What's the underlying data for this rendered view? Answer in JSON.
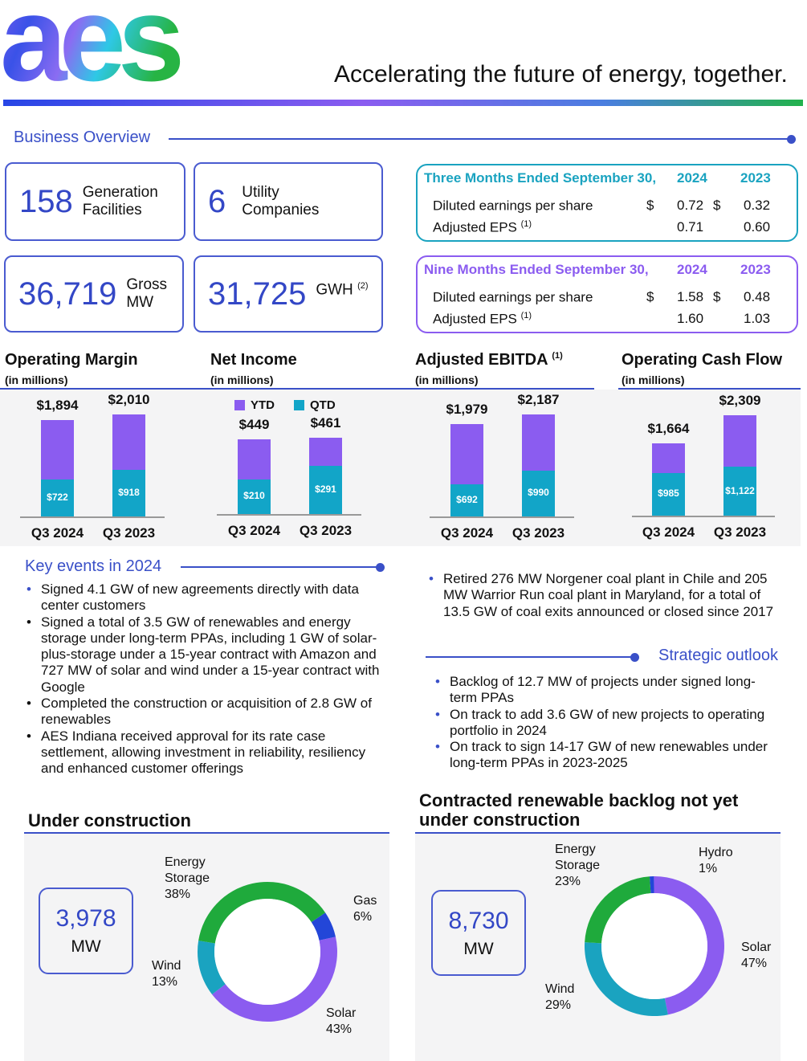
{
  "header": {
    "logo_text": "aes",
    "tagline": "Accelerating the future of energy, together."
  },
  "colors": {
    "accent": "#3a50c8",
    "ytd": "#8b5cf0",
    "qtd": "#12a5c8",
    "teal": "#1aa3c0",
    "purple": "#8b5cf0",
    "green": "#1faa3c",
    "gas_blue": "#2346d8"
  },
  "business_overview": {
    "title": "Business Overview",
    "kpis": [
      {
        "value": "158",
        "label_1": "Generation",
        "label_2": "Facilities"
      },
      {
        "value": "6",
        "label_1": "Utility",
        "label_2": "Companies"
      },
      {
        "value": "36,719",
        "label_1": "Gross",
        "label_2": "MW"
      },
      {
        "value": "31,725",
        "label_1": "GWH",
        "sup": "(2)"
      }
    ],
    "tables": [
      {
        "title": "Three Months Ended September 30,",
        "y1": "2024",
        "y2": "2023",
        "rows": [
          {
            "label": "Diluted earnings per share",
            "sup": "",
            "cur1": "$",
            "v1": "0.72",
            "cur2": "$",
            "v2": "0.32"
          },
          {
            "label": "Adjusted EPS",
            "sup": "(1)",
            "cur1": "",
            "v1": "0.71",
            "cur2": "",
            "v2": "0.60"
          }
        ]
      },
      {
        "title": "Nine Months Ended September 30,",
        "y1": "2024",
        "y2": "2023",
        "rows": [
          {
            "label": "Diluted earnings per share",
            "sup": "",
            "cur1": "$",
            "v1": "1.58",
            "cur2": "$",
            "v2": "0.48"
          },
          {
            "label": "Adjusted EPS",
            "sup": "(1)",
            "cur1": "",
            "v1": "1.60",
            "cur2": "",
            "v2": "1.03"
          }
        ]
      }
    ]
  },
  "chart_data": [
    {
      "type": "bar",
      "stacked": true,
      "title": "Operating Margin",
      "subtitle": "(in millions)",
      "categories": [
        "Q3 2024",
        "Q3 2023"
      ],
      "series": [
        {
          "name": "YTD",
          "values": [
            1894,
            2010
          ],
          "labels": [
            "$1,894",
            "$2,010"
          ]
        },
        {
          "name": "QTD",
          "values": [
            722,
            918
          ],
          "labels": [
            "$722",
            "$918"
          ]
        }
      ]
    },
    {
      "type": "bar",
      "stacked": true,
      "title": "Net Income",
      "subtitle": "(in millions)",
      "legend": [
        "YTD",
        "QTD"
      ],
      "categories": [
        "Q3 2024",
        "Q3 2023"
      ],
      "series": [
        {
          "name": "YTD",
          "values": [
            449,
            461
          ],
          "labels": [
            "$449",
            "$461"
          ]
        },
        {
          "name": "QTD",
          "values": [
            210,
            291
          ],
          "labels": [
            "$210",
            "$291"
          ]
        }
      ]
    },
    {
      "type": "bar",
      "stacked": true,
      "title": "Adjusted EBITDA",
      "title_sup": "(1)",
      "subtitle": "(in millions)",
      "categories": [
        "Q3 2024",
        "Q3 2023"
      ],
      "series": [
        {
          "name": "YTD",
          "values": [
            1979,
            2187
          ],
          "labels": [
            "$1,979",
            "$2,187"
          ]
        },
        {
          "name": "QTD",
          "values": [
            692,
            990
          ],
          "labels": [
            "$692",
            "$990"
          ]
        }
      ]
    },
    {
      "type": "bar",
      "stacked": true,
      "title": "Operating Cash Flow",
      "subtitle": "(in millions)",
      "categories": [
        "Q3 2024",
        "Q3 2023"
      ],
      "series": [
        {
          "name": "YTD",
          "values": [
            1664,
            2309
          ],
          "labels": [
            "$1,664",
            "$2,309"
          ]
        },
        {
          "name": "QTD",
          "values": [
            985,
            1122
          ],
          "labels": [
            "$985",
            "$1,122"
          ]
        }
      ]
    },
    {
      "type": "pie",
      "donut": true,
      "title": "Under construction",
      "total": "3,978",
      "unit": "MW",
      "slices": [
        {
          "name_1": "Gas",
          "name_2": "",
          "pct": 6,
          "label": "6%"
        },
        {
          "name_1": "Solar",
          "name_2": "",
          "pct": 43,
          "label": "43%"
        },
        {
          "name_1": "Wind",
          "name_2": "",
          "pct": 13,
          "label": "13%"
        },
        {
          "name_1": "Energy",
          "name_2": "Storage",
          "pct": 38,
          "label": "38%"
        }
      ]
    },
    {
      "type": "pie",
      "donut": true,
      "title_1": "Contracted renewable backlog not yet",
      "title_2": "under construction",
      "total": "8,730",
      "unit": "MW",
      "slices": [
        {
          "name_1": "Hydro",
          "name_2": "",
          "pct": 1,
          "label": "1%"
        },
        {
          "name_1": "Solar",
          "name_2": "",
          "pct": 47,
          "label": "47%"
        },
        {
          "name_1": "Wind",
          "name_2": "",
          "pct": 29,
          "label": "29%"
        },
        {
          "name_1": "Energy",
          "name_2": "Storage",
          "pct": 23,
          "label": "23%"
        }
      ]
    }
  ],
  "key_events": {
    "title": "Key events in 2024",
    "items": [
      "Signed 4.1 GW of new agreements directly with data center customers",
      "Signed a total of 3.5 GW of renewables and energy storage under long-term PPAs, including 1 GW of solar-plus-storage under a 15-year contract with Amazon and 727 MW of solar and wind under a 15-year contract with Google",
      "Completed the construction or acquisition of 2.8 GW of renewables",
      "AES Indiana received approval for its rate case settlement, allowing investment in reliability, resiliency and enhanced customer offerings",
      "Retired 276 MW Norgener coal plant in Chile and 205 MW Warrior Run coal plant in Maryland, for a total of 13.5 GW of coal exits announced or closed since 2017"
    ]
  },
  "strategic_outlook": {
    "title": "Strategic outlook",
    "items": [
      "Backlog of 12.7 MW of projects under signed long-term PPAs",
      "On track to add 3.6 GW of new projects to operating portfolio in 2024",
      "On track to sign 14-17 GW of new renewables under long-term PPAs in 2023-2025"
    ]
  }
}
